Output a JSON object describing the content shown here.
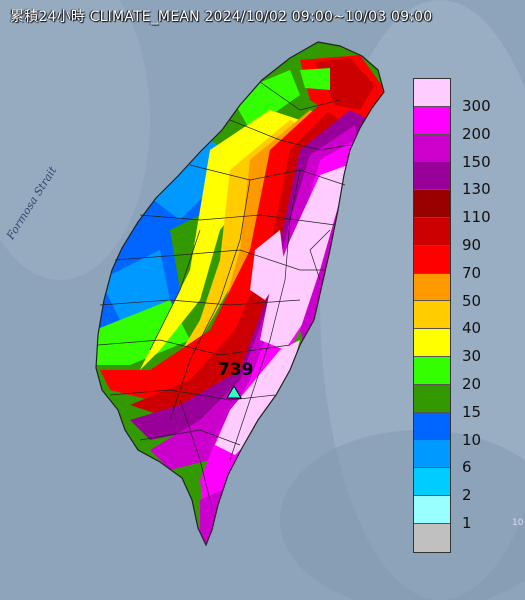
{
  "title": "累積24小時 CLIMATE_MEAN 2024/10/02 09:00~10/03 09:00",
  "strait_label": "Formosa Strait",
  "max_value": "739",
  "edge_mark": "10",
  "legend": [
    {
      "label": "300",
      "color": "#ffccff"
    },
    {
      "label": "200",
      "color": "#ff00ff"
    },
    {
      "label": "150",
      "color": "#cc00cc"
    },
    {
      "label": "130",
      "color": "#990099"
    },
    {
      "label": "110",
      "color": "#990000"
    },
    {
      "label": "90",
      "color": "#cc0000"
    },
    {
      "label": "70",
      "color": "#ff0000"
    },
    {
      "label": "50",
      "color": "#ff9900"
    },
    {
      "label": "40",
      "color": "#ffcc00"
    },
    {
      "label": "30",
      "color": "#ffff00"
    },
    {
      "label": "20",
      "color": "#33ff00"
    },
    {
      "label": "15",
      "color": "#339900"
    },
    {
      "label": "10",
      "color": "#0066ff"
    },
    {
      "label": "6",
      "color": "#0099ff"
    },
    {
      "label": "2",
      "color": "#00ccff"
    },
    {
      "label": "1",
      "color": "#99ffff"
    },
    {
      "label": "",
      "color": "#c0c0c0"
    }
  ]
}
